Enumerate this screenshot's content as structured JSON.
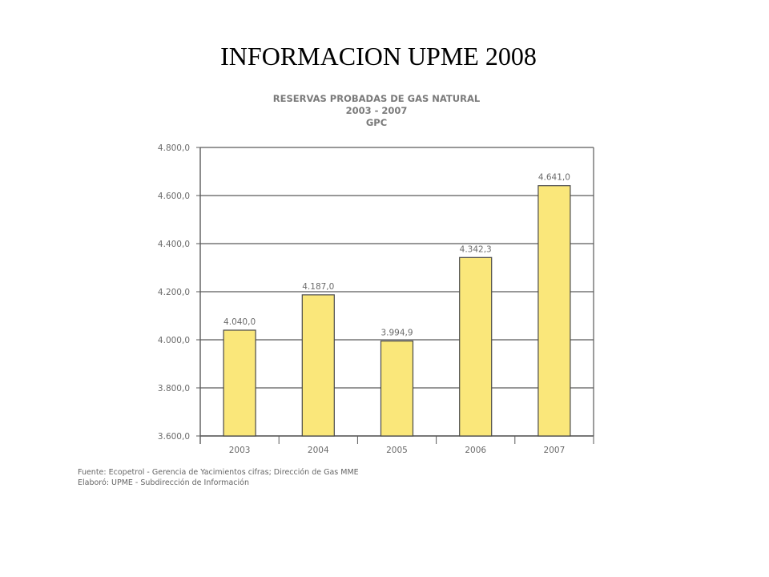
{
  "slide": {
    "title": "INFORMACION UPME 2008"
  },
  "chart_data": {
    "type": "bar",
    "title": "RESERVAS PROBADAS DE GAS NATURAL",
    "subtitle": "2003 - 2007",
    "unit": "GPC",
    "categories": [
      "2003",
      "2004",
      "2005",
      "2006",
      "2007"
    ],
    "values": [
      4040.0,
      4187.0,
      3994.9,
      4342.3,
      4641.0
    ],
    "value_labels": [
      "4.040,0",
      "4.187,0",
      "3.994,9",
      "4.342,3",
      "4.641,0"
    ],
    "yticks": [
      3600,
      3800,
      4000,
      4200,
      4400,
      4600,
      4800
    ],
    "ytick_labels": [
      "3.600,0",
      "3.800,0",
      "4.000,0",
      "4.200,0",
      "4.400,0",
      "4.600,0",
      "4.800,0"
    ],
    "ylim": [
      3600,
      4800
    ],
    "grid": true,
    "bar_color": "#fae77a",
    "bar_edge_color": "#4a4a4a",
    "xlabel": "",
    "ylabel": ""
  },
  "source": {
    "line1": "Fuente: Ecopetrol - Gerencia de Yacimientos cifras; Dirección de Gas MME",
    "line2": "Elaboró: UPME - Subdirección de Información"
  }
}
